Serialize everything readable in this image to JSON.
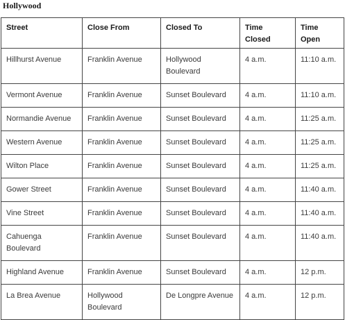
{
  "title": "Hollywood",
  "columns": [
    "Street",
    "Close From",
    "Closed To",
    "Time Closed",
    "Time Open"
  ],
  "rows": [
    [
      "Hillhurst Avenue",
      "Franklin Avenue",
      "Hollywood Boulevard",
      "4 a.m.",
      "11:10 a.m."
    ],
    [
      "Vermont Avenue",
      "Franklin Avenue",
      "Sunset Boulevard",
      "4 a.m.",
      "11:10 a.m."
    ],
    [
      "Normandie Avenue",
      "Franklin Avenue",
      "Sunset Boulevard",
      "4 a.m.",
      "11:25 a.m."
    ],
    [
      "Western Avenue",
      "Franklin Avenue",
      "Sunset Boulevard",
      "4 a.m.",
      "11:25 a.m."
    ],
    [
      "Wilton Place",
      "Franklin Avenue",
      "Sunset Boulevard",
      "4 a.m.",
      "11:25 a.m."
    ],
    [
      "Gower Street",
      "Franklin Avenue",
      "Sunset Boulevard",
      "4 a.m.",
      "11:40 a.m."
    ],
    [
      "Vine Street",
      "Franklin Avenue",
      "Sunset Boulevard",
      "4 a.m.",
      "11:40 a.m."
    ],
    [
      "Cahuenga Boulevard",
      "Franklin Avenue",
      "Sunset Boulevard",
      "4 a.m.",
      "11:40 a.m."
    ],
    [
      "Highland Avenue",
      "Franklin Avenue",
      "Sunset Boulevard",
      "4 a.m.",
      "12 p.m."
    ],
    [
      "La Brea Avenue",
      "Hollywood Boulevard",
      "De Longpre Avenue",
      "4 a.m.",
      "12 p.m."
    ]
  ]
}
